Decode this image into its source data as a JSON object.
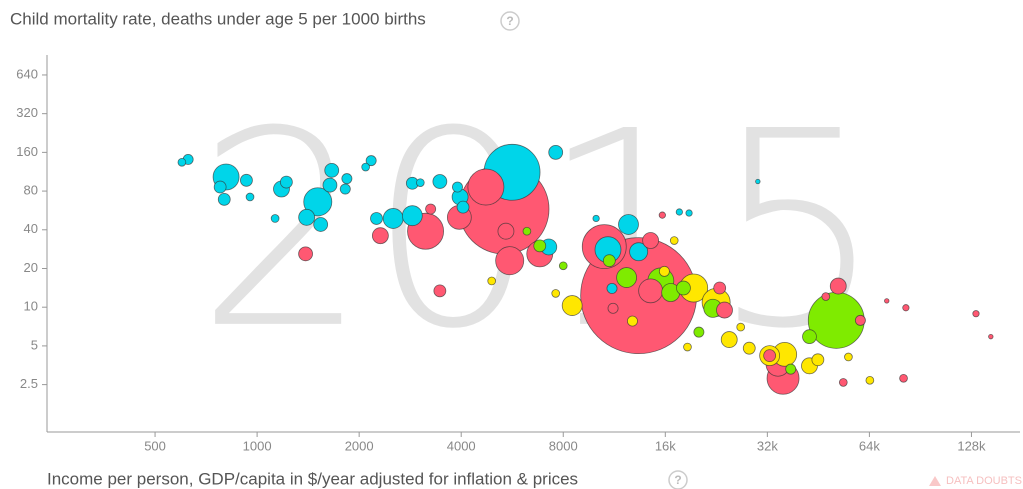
{
  "chart_data": {
    "type": "bubble",
    "title": "Child mortality rate, deaths under age 5 per 1000 births",
    "x_label": "Income per person, GDP/capita in $/year adjusted for inflation & prices",
    "year": "2015",
    "note": "DATA DOUBTS",
    "log_x": true,
    "log_y": true,
    "xlim": [
      240,
      178000
    ],
    "ylim": [
      1.07,
      915
    ],
    "xticks": [
      500,
      1000,
      2000,
      4000,
      8000,
      {
        "value": 16000,
        "label": "16k"
      },
      {
        "value": 32000,
        "label": "32k"
      },
      {
        "value": 64000,
        "label": "64k"
      },
      {
        "value": 128000,
        "label": "128k"
      }
    ],
    "yticks": [
      2.5,
      5,
      10,
      20,
      40,
      80,
      160,
      320,
      640
    ],
    "series": [
      {
        "color": "#00d5e9",
        "x": [
          600,
          626,
          810,
          778,
          800,
          930,
          953,
          1180,
          1220,
          1130,
          1400,
          1510,
          1540,
          1640,
          1660,
          1840,
          1820,
          2170,
          2090,
          2250,
          2520,
          2870,
          3030,
          3460,
          3900,
          2870,
          3970,
          4050,
          5650,
          7600,
          7250,
          12460,
          10840,
          13350,
          11140,
          10000,
          17600,
          18800,
          30000
        ],
        "y": [
          134,
          141,
          103,
          86,
          69,
          97,
          72,
          83,
          94,
          49,
          50,
          66,
          44,
          89,
          116,
          100,
          83,
          138,
          123,
          49,
          49,
          92,
          93,
          95,
          86,
          51.5,
          72,
          60,
          112,
          160,
          29.4,
          44,
          28,
          27,
          14,
          49,
          55,
          54,
          95
        ],
        "size": [
          6,
          10,
          66,
          14,
          14,
          14,
          6,
          25,
          14,
          6,
          25,
          77,
          19,
          19,
          19,
          10,
          10,
          10,
          6,
          14,
          39,
          14,
          6,
          19,
          10,
          39,
          25,
          14,
          306,
          19,
          25,
          39,
          66,
          32,
          10,
          4,
          4,
          4,
          2
        ]
      },
      {
        "color": "#ff5872",
        "x": [
          5350,
          4730,
          3140,
          2310,
          3250,
          1390,
          3460,
          3950,
          5560,
          6820,
          5420,
          10570,
          13350,
          11220,
          14480,
          14480,
          15680,
          23150,
          23920,
          32500,
          34400,
          35600,
          51800,
          47600,
          60200,
          53600,
          80700,
          82000,
          132000,
          146000,
          72000
        ],
        "y": [
          58,
          86,
          39,
          36,
          58,
          26,
          13.4,
          50,
          23,
          26,
          39,
          29.6,
          12.3,
          9.8,
          13.4,
          33,
          52,
          14.1,
          9.5,
          4.2,
          3.6,
          2.8,
          14.6,
          12.1,
          7.9,
          2.6,
          2.8,
          9.9,
          8.9,
          5.9,
          11.2
        ],
        "size": [
          790,
          127,
          127,
          25,
          10,
          19,
          14,
          56,
          77,
          66,
          25,
          189,
          1314,
          10,
          56,
          25,
          4,
          14,
          25,
          14,
          56,
          100,
          25,
          6,
          10,
          6,
          6,
          4,
          4,
          2,
          2
        ]
      },
      {
        "color": "#ffe700",
        "x": [
          8500,
          12800,
          19400,
          22600,
          24700,
          26700,
          28300,
          32500,
          36000,
          45100,
          42600,
          55500,
          64200,
          17000,
          18600,
          7600,
          4920,
          15900
        ],
        "y": [
          10.3,
          7.8,
          14.1,
          10.9,
          5.6,
          7.0,
          4.8,
          4.2,
          4.3,
          3.9,
          3.5,
          4.1,
          2.7,
          33,
          4.9,
          12.8,
          16,
          19
        ],
        "size": [
          39,
          10,
          77,
          77,
          25,
          6,
          14,
          39,
          56,
          14,
          25,
          6,
          6,
          6,
          6,
          6,
          6,
          10
        ]
      },
      {
        "color": "#7feb00",
        "x": [
          51100,
          42600,
          37500,
          6820,
          6250,
          10940,
          12300,
          15520,
          16600,
          18100,
          22100,
          20100,
          8000
        ],
        "y": [
          7.9,
          5.9,
          3.3,
          30,
          39,
          23,
          17,
          16,
          13,
          14.1,
          9.8,
          6.4,
          21
        ],
        "size": [
          306,
          19,
          10,
          14,
          6,
          14,
          39,
          66,
          32,
          19,
          32,
          10,
          6
        ]
      }
    ]
  }
}
